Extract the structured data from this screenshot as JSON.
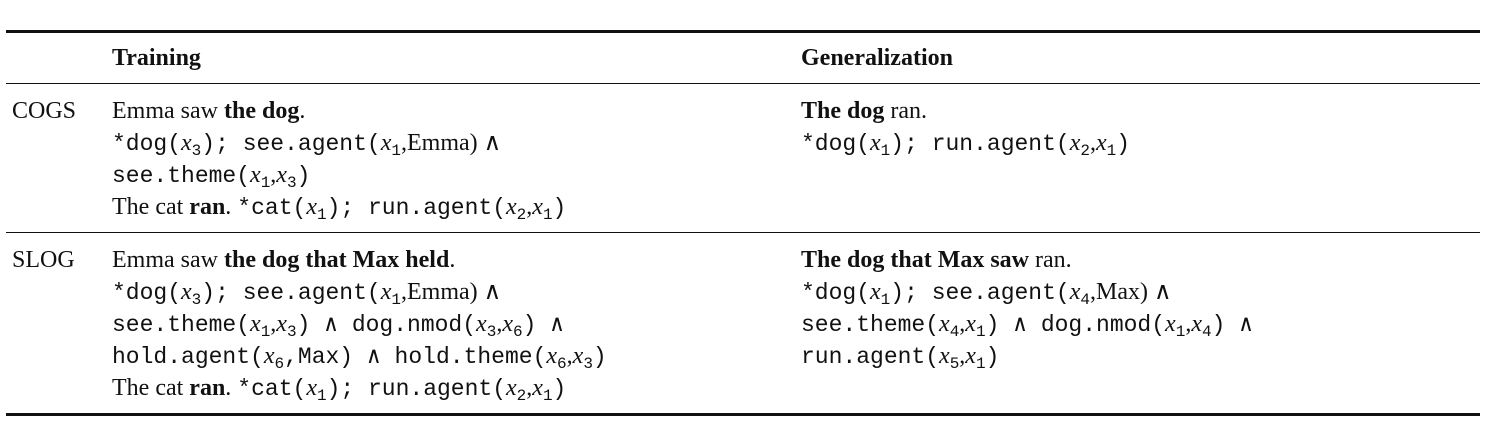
{
  "header": {
    "col_training": "Training",
    "col_generalization": "Generalization"
  },
  "rows": [
    {
      "label": "COGS",
      "training": {
        "sentence1": {
          "pre": "Emma saw ",
          "bold": "the dog",
          "post": "."
        },
        "lf1_line1": {
          "a": "*dog(",
          "b": "x",
          "c": "3",
          "d": "); see.agent(",
          "e": "x",
          "f": "1",
          "g": ",Emma) ∧"
        },
        "lf1_line2": {
          "a": "see.theme(",
          "b": "x",
          "c": "1",
          "d": ",",
          "e": "x",
          "f": "3",
          "g": ")"
        },
        "sentence2": {
          "pre": "The cat ",
          "bold": "ran",
          "post": ". ",
          "lf_a": "*cat(",
          "lf_b": "x",
          "lf_c": "1",
          "lf_d": "); run.agent(",
          "lf_e": "x",
          "lf_f": "2",
          "lf_g": ",",
          "lf_h": "x",
          "lf_i": "1",
          "lf_j": ")"
        }
      },
      "generalization": {
        "sentence": {
          "bold": "The dog",
          "post": " ran."
        },
        "lf_line1": {
          "a": "*dog(",
          "b": "x",
          "c": "1",
          "d": "); run.agent(",
          "e": "x",
          "f": "2",
          "g": ",",
          "h": "x",
          "i": "1",
          "j": ")"
        }
      }
    },
    {
      "label": "SLOG",
      "training": {
        "sentence1": {
          "pre": "Emma saw ",
          "bold": "the dog that Max held",
          "post": "."
        },
        "lf1_line1": {
          "a": "*dog(",
          "b": "x",
          "c": "3",
          "d": "); see.agent(",
          "e": "x",
          "f": "1",
          "g": ",Emma) ∧"
        },
        "lf1_line2": {
          "a": "see.theme(",
          "b": "x",
          "c": "1",
          "d": ",",
          "e": "x",
          "f": "3",
          "g": ") ∧ dog.nmod(",
          "h": "x",
          "i": "3",
          "j": ",",
          "k": "x",
          "l": "6",
          "m": ") ∧"
        },
        "lf1_line3": {
          "a": "hold.agent(",
          "b": "x",
          "c": "6",
          "d": ",Max) ∧ hold.theme(",
          "e": "x",
          "f": "6",
          "g": ",",
          "h": "x",
          "i": "3",
          "j": ")"
        },
        "sentence2": {
          "pre": "The cat ",
          "bold": "ran",
          "post": ". ",
          "lf_a": "*cat(",
          "lf_b": "x",
          "lf_c": "1",
          "lf_d": "); run.agent(",
          "lf_e": "x",
          "lf_f": "2",
          "lf_g": ",",
          "lf_h": "x",
          "lf_i": "1",
          "lf_j": ")"
        }
      },
      "generalization": {
        "sentence": {
          "bold": "The dog that Max saw",
          "post": " ran."
        },
        "lf_line1": {
          "a": "*dog(",
          "b": "x",
          "c": "1",
          "d": "); see.agent(",
          "e": "x",
          "f": "4",
          "g": ",Max) ∧"
        },
        "lf_line2": {
          "a": "see.theme(",
          "b": "x",
          "c": "4",
          "d": ",",
          "e": "x",
          "f": "1",
          "g": ") ∧ dog.nmod(",
          "h": "x",
          "i": "1",
          "j": ",",
          "k": "x",
          "l": "4",
          "m": ") ∧"
        },
        "lf_line3": {
          "a": "run.agent(",
          "b": "x",
          "c": "5",
          "d": ",",
          "e": "x",
          "f": "1",
          "g": ")"
        }
      }
    }
  ]
}
